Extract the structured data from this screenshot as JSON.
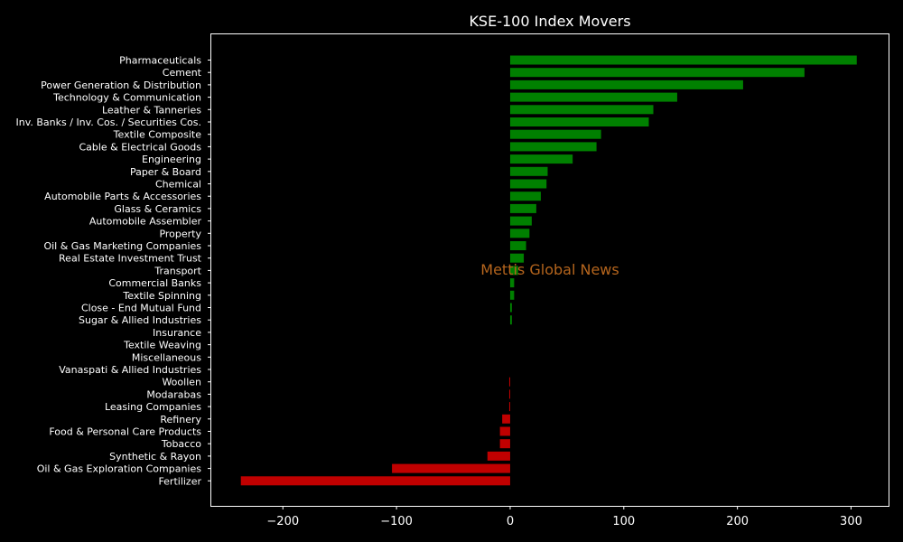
{
  "chart_data": {
    "type": "bar",
    "orientation": "horizontal",
    "title": "KSE-100 Index Movers",
    "watermark": "Mettis Global News",
    "xlabel": "",
    "ylabel": "",
    "xlim": [
      -263,
      333
    ],
    "xticks": [
      -200,
      -100,
      0,
      100,
      200,
      300
    ],
    "xtick_labels": [
      "−200",
      "−100",
      "0",
      "100",
      "200",
      "300"
    ],
    "grid": false,
    "colors": {
      "background": "#000000",
      "axes": "#ffffff",
      "text": "#ffffff",
      "positive": "#008000",
      "negative": "#c00000",
      "watermark": "#b5651d"
    },
    "categories": [
      "Pharmaceuticals",
      "Cement",
      "Power Generation & Distribution",
      "Technology & Communication",
      "Leather & Tanneries",
      "Inv. Banks / Inv. Cos. / Securities Cos.",
      "Textile Composite",
      "Cable & Electrical Goods",
      "Engineering",
      "Paper & Board",
      "Chemical",
      "Automobile Parts & Accessories",
      "Glass & Ceramics",
      "Automobile Assembler",
      "Property",
      "Oil & Gas Marketing Companies",
      "Real Estate Investment Trust",
      "Transport",
      "Commercial Banks",
      "Textile Spinning",
      "Close - End Mutual Fund",
      "Sugar & Allied Industries",
      "Insurance",
      "Textile Weaving",
      "Miscellaneous",
      "Vanaspati & Allied Industries",
      "Woollen",
      "Modarabas",
      "Leasing Companies",
      "Refinery",
      "Food & Personal Care Products",
      "Tobacco",
      "Synthetic & Rayon",
      "Oil & Gas Exploration Companies",
      "Fertilizer"
    ],
    "values": [
      305,
      259,
      205,
      147,
      126,
      122,
      80,
      76,
      55,
      33,
      32,
      27,
      23,
      19,
      17,
      14,
      12,
      7,
      3.5,
      3.5,
      1.5,
      1.5,
      0,
      0,
      0,
      0,
      -0.8,
      -0.8,
      -0.8,
      -7,
      -9,
      -9,
      -20,
      -104,
      -237
    ]
  }
}
